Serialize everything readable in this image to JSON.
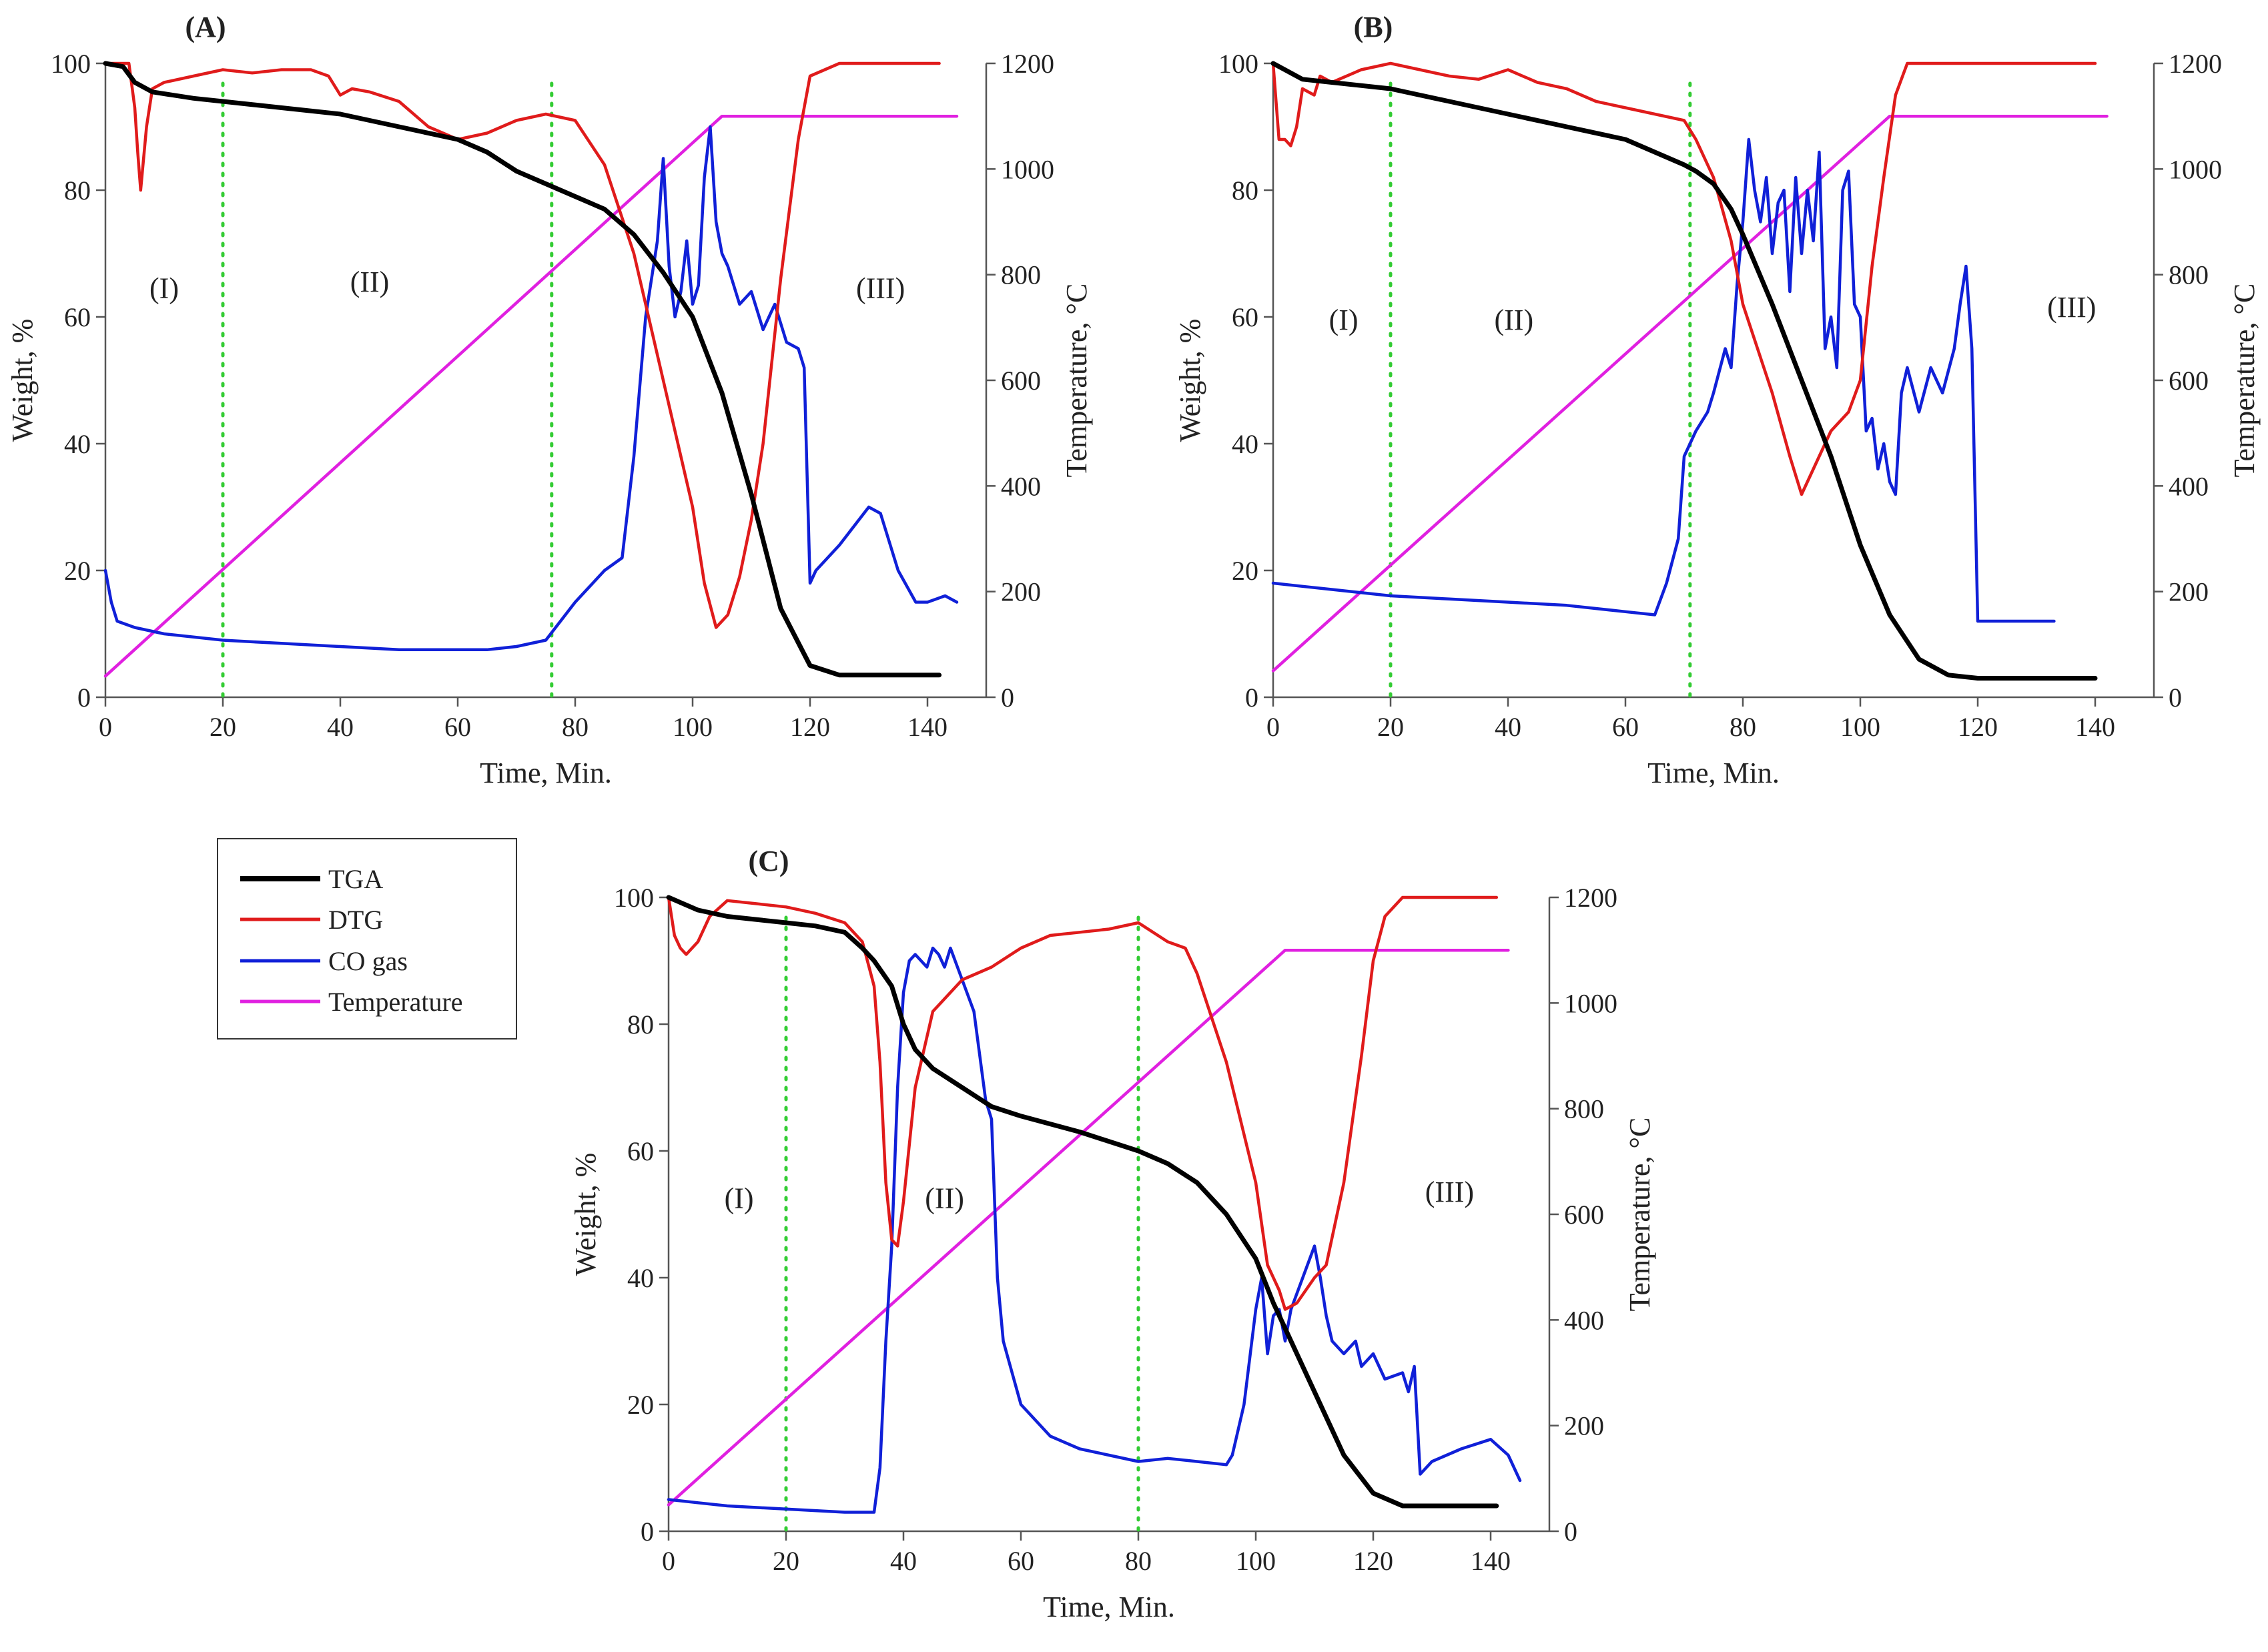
{
  "legend": {
    "entries": [
      {
        "label": "TGA",
        "color": "#000000"
      },
      {
        "label": "DTG",
        "color": "#e01b1b"
      },
      {
        "label": "CO gas",
        "color": "#1020d8"
      },
      {
        "label": "Temperature",
        "color": "#e020e0"
      }
    ]
  },
  "colors": {
    "tga": "#000000",
    "dtg": "#e01b1b",
    "co": "#1020d8",
    "temp": "#e020e0",
    "divider": "#33cc33",
    "axis": "#555555"
  },
  "chart_data": [
    {
      "panel": "(A)",
      "type": "line",
      "xlabel": "Time, Min.",
      "ylabel": "Weight, %",
      "y2label": "Temperature, °C",
      "xlim": [
        0,
        150
      ],
      "ylim": [
        0,
        100
      ],
      "y2lim": [
        0,
        1200
      ],
      "xticks": [
        0,
        20,
        40,
        60,
        80,
        100,
        120,
        140
      ],
      "yticks": [
        0,
        20,
        40,
        60,
        80,
        100
      ],
      "y2ticks": [
        0,
        200,
        400,
        600,
        800,
        1000,
        1200
      ],
      "stage_labels": [
        {
          "text": "(I)",
          "x": 10,
          "y": 63
        },
        {
          "text": "(II)",
          "x": 45,
          "y": 64
        },
        {
          "text": "(III)",
          "x": 132,
          "y": 63
        }
      ],
      "dividers": [
        20,
        76
      ],
      "series": [
        {
          "name": "TGA",
          "axis": "left",
          "x": [
            0,
            3,
            5,
            8,
            15,
            20,
            30,
            40,
            50,
            60,
            65,
            70,
            75,
            80,
            85,
            90,
            95,
            100,
            105,
            110,
            115,
            120,
            125,
            130,
            135,
            142
          ],
          "y": [
            100,
            99.5,
            97,
            95.5,
            94.5,
            94,
            93,
            92,
            90,
            88,
            86,
            83,
            81,
            79,
            77,
            73,
            67,
            60,
            48,
            32,
            14,
            5,
            3.5,
            3.5,
            3.5,
            3.5
          ]
        },
        {
          "name": "DTG",
          "axis": "left",
          "x": [
            0,
            4,
            5,
            5.5,
            6,
            7,
            8,
            10,
            15,
            20,
            25,
            30,
            35,
            38,
            40,
            42,
            45,
            50,
            55,
            60,
            65,
            70,
            75,
            80,
            85,
            90,
            95,
            100,
            102,
            104,
            106,
            108,
            110,
            112,
            115,
            118,
            120,
            125,
            130,
            135,
            142
          ],
          "y": [
            100,
            100,
            93,
            86,
            80,
            90,
            96,
            97,
            98,
            99,
            98.5,
            99,
            99,
            98,
            95,
            96,
            95.5,
            94,
            90,
            88,
            89,
            91,
            92,
            91,
            84,
            70,
            50,
            30,
            18,
            11,
            13,
            19,
            28,
            40,
            66,
            88,
            98,
            100,
            100,
            100,
            100
          ]
        },
        {
          "name": "CO gas",
          "axis": "left",
          "x": [
            0,
            1,
            2,
            5,
            10,
            20,
            30,
            40,
            50,
            60,
            65,
            70,
            75,
            80,
            85,
            88,
            90,
            92,
            94,
            95,
            96,
            97,
            98,
            99,
            100,
            101,
            102,
            103,
            104,
            105,
            106,
            108,
            110,
            112,
            114,
            116,
            118,
            119,
            120,
            121,
            125,
            130,
            132,
            135,
            138,
            140,
            143,
            145
          ],
          "y": [
            20,
            15,
            12,
            11,
            10,
            9,
            8.5,
            8,
            7.5,
            7.5,
            7.5,
            8,
            9,
            15,
            20,
            22,
            38,
            60,
            72,
            85,
            68,
            60,
            64,
            72,
            62,
            65,
            82,
            90,
            75,
            70,
            68,
            62,
            64,
            58,
            62,
            56,
            55,
            52,
            18,
            20,
            24,
            30,
            29,
            20,
            15,
            15,
            16,
            15
          ]
        },
        {
          "name": "Temperature",
          "axis": "right",
          "x": [
            0,
            105,
            145
          ],
          "y": [
            40,
            1100,
            1100
          ]
        }
      ]
    },
    {
      "panel": "(B)",
      "type": "line",
      "xlabel": "Time, Min.",
      "ylabel": "Weight, %",
      "y2label": "Temperature, °C",
      "xlim": [
        0,
        150
      ],
      "ylim": [
        0,
        100
      ],
      "y2lim": [
        0,
        1200
      ],
      "xticks": [
        0,
        20,
        40,
        60,
        80,
        100,
        120,
        140
      ],
      "yticks": [
        0,
        20,
        40,
        60,
        80,
        100
      ],
      "y2ticks": [
        0,
        200,
        400,
        600,
        800,
        1000,
        1200
      ],
      "stage_labels": [
        {
          "text": "(I)",
          "x": 12,
          "y": 58
        },
        {
          "text": "(II)",
          "x": 41,
          "y": 58
        },
        {
          "text": "(III)",
          "x": 136,
          "y": 60
        }
      ],
      "dividers": [
        20,
        71
      ],
      "series": [
        {
          "name": "TGA",
          "axis": "left",
          "x": [
            0,
            5,
            10,
            20,
            30,
            40,
            50,
            60,
            65,
            70,
            72,
            75,
            78,
            80,
            85,
            90,
            95,
            100,
            105,
            110,
            115,
            120,
            125,
            130,
            135,
            140
          ],
          "y": [
            100,
            97.5,
            97,
            96,
            94,
            92,
            90,
            88,
            86,
            84,
            83,
            81,
            77,
            73,
            62,
            50,
            38,
            24,
            13,
            6,
            3.5,
            3,
            3,
            3,
            3,
            3
          ]
        },
        {
          "name": "DTG",
          "axis": "left",
          "x": [
            0,
            1,
            2,
            3,
            4,
            5,
            7,
            8,
            10,
            15,
            20,
            25,
            30,
            35,
            40,
            45,
            50,
            55,
            60,
            65,
            70,
            72,
            75,
            78,
            80,
            85,
            88,
            90,
            92,
            95,
            98,
            100,
            102,
            104,
            106,
            108,
            110,
            115,
            120,
            125,
            130,
            135,
            140
          ],
          "y": [
            100,
            88,
            88,
            87,
            90,
            96,
            95,
            98,
            97,
            99,
            100,
            99,
            98,
            97.5,
            99,
            97,
            96,
            94,
            93,
            92,
            91,
            88,
            82,
            72,
            62,
            48,
            38,
            32,
            36,
            42,
            45,
            50,
            68,
            82,
            95,
            100,
            100,
            100,
            100,
            100,
            100,
            100,
            100
          ]
        },
        {
          "name": "CO gas",
          "axis": "left",
          "x": [
            0,
            5,
            10,
            20,
            30,
            40,
            50,
            60,
            65,
            67,
            69,
            70,
            72,
            74,
            75,
            77,
            78,
            79,
            80,
            81,
            82,
            83,
            84,
            85,
            86,
            87,
            88,
            89,
            90,
            91,
            92,
            93,
            94,
            95,
            96,
            97,
            98,
            99,
            100,
            101,
            102,
            103,
            104,
            105,
            106,
            107,
            108,
            110,
            112,
            114,
            116,
            117,
            118,
            119,
            120,
            125,
            130,
            133
          ],
          "y": [
            18,
            17.5,
            17,
            16,
            15.5,
            15,
            14.5,
            13.5,
            13,
            18,
            25,
            38,
            42,
            45,
            48,
            55,
            52,
            65,
            75,
            88,
            80,
            75,
            82,
            70,
            78,
            80,
            64,
            82,
            70,
            80,
            72,
            86,
            55,
            60,
            52,
            80,
            83,
            62,
            60,
            42,
            44,
            36,
            40,
            34,
            32,
            48,
            52,
            45,
            52,
            48,
            55,
            62,
            68,
            55,
            12,
            12,
            12,
            12
          ]
        },
        {
          "name": "Temperature",
          "axis": "right",
          "x": [
            0,
            105,
            142
          ],
          "y": [
            50,
            1100,
            1100
          ]
        }
      ]
    },
    {
      "panel": "(C)",
      "type": "line",
      "xlabel": "Time, Min.",
      "ylabel": "Weight, %",
      "y2label": "Temperature, °C",
      "xlim": [
        0,
        150
      ],
      "ylim": [
        0,
        100
      ],
      "y2lim": [
        0,
        1200
      ],
      "xticks": [
        0,
        20,
        40,
        60,
        80,
        100,
        120,
        140
      ],
      "yticks": [
        0,
        20,
        40,
        60,
        80,
        100
      ],
      "y2ticks": [
        0,
        200,
        400,
        600,
        800,
        1000,
        1200
      ],
      "stage_labels": [
        {
          "text": "(I)",
          "x": 12,
          "y": 51
        },
        {
          "text": "(II)",
          "x": 47,
          "y": 51
        },
        {
          "text": "(III)",
          "x": 133,
          "y": 52
        }
      ],
      "dividers": [
        20,
        80
      ],
      "series": [
        {
          "name": "TGA",
          "axis": "left",
          "x": [
            0,
            5,
            10,
            20,
            25,
            30,
            33,
            35,
            38,
            40,
            42,
            45,
            50,
            55,
            60,
            70,
            80,
            85,
            90,
            95,
            100,
            103,
            105,
            110,
            115,
            120,
            125,
            130,
            135,
            141
          ],
          "y": [
            100,
            98,
            97,
            96,
            95.5,
            94.5,
            92,
            90,
            86,
            80,
            76,
            73,
            70,
            67,
            65.5,
            63,
            60,
            58,
            55,
            50,
            43,
            36,
            32,
            22,
            12,
            6,
            4,
            4,
            4,
            4
          ]
        },
        {
          "name": "DTG",
          "axis": "left",
          "x": [
            0,
            1,
            2,
            3,
            5,
            7,
            10,
            15,
            20,
            25,
            30,
            33,
            35,
            36,
            37,
            38,
            39,
            40,
            42,
            45,
            50,
            55,
            60,
            65,
            70,
            75,
            80,
            85,
            88,
            90,
            95,
            100,
            102,
            104,
            105,
            107,
            110,
            112,
            115,
            118,
            120,
            122,
            125,
            130,
            135,
            141
          ],
          "y": [
            100,
            94,
            92,
            91,
            93,
            97,
            99.5,
            99,
            98.5,
            97.5,
            96,
            93,
            86,
            74,
            55,
            46,
            45,
            52,
            70,
            82,
            87,
            89,
            92,
            94,
            94.5,
            95,
            96,
            93,
            92,
            88,
            74,
            55,
            42,
            38,
            35,
            36,
            40,
            42,
            55,
            75,
            90,
            97,
            100,
            100,
            100,
            100
          ]
        },
        {
          "name": "CO gas",
          "axis": "left",
          "x": [
            0,
            5,
            10,
            20,
            30,
            35,
            36,
            37,
            38,
            39,
            40,
            41,
            42,
            44,
            45,
            46,
            47,
            48,
            50,
            52,
            53,
            54,
            55,
            56,
            57,
            60,
            65,
            70,
            75,
            80,
            85,
            90,
            95,
            96,
            98,
            100,
            101,
            102,
            103,
            104,
            105,
            106,
            108,
            110,
            111,
            112,
            113,
            115,
            117,
            118,
            120,
            122,
            125,
            126,
            127,
            128,
            130,
            135,
            140,
            143,
            145
          ],
          "y": [
            5,
            4.5,
            4,
            3.5,
            3,
            3,
            10,
            30,
            45,
            70,
            85,
            90,
            91,
            89,
            92,
            91,
            89,
            92,
            87,
            82,
            75,
            68,
            65,
            40,
            30,
            20,
            15,
            13,
            12,
            11,
            11.5,
            11,
            10.5,
            12,
            20,
            35,
            40,
            28,
            34,
            35,
            30,
            35,
            40,
            45,
            40,
            34,
            30,
            28,
            30,
            26,
            28,
            24,
            25,
            22,
            26,
            9,
            11,
            13,
            14.5,
            12,
            8
          ]
        },
        {
          "name": "Temperature",
          "axis": "right",
          "x": [
            0,
            105,
            143
          ],
          "y": [
            50,
            1100,
            1100
          ]
        }
      ]
    }
  ]
}
